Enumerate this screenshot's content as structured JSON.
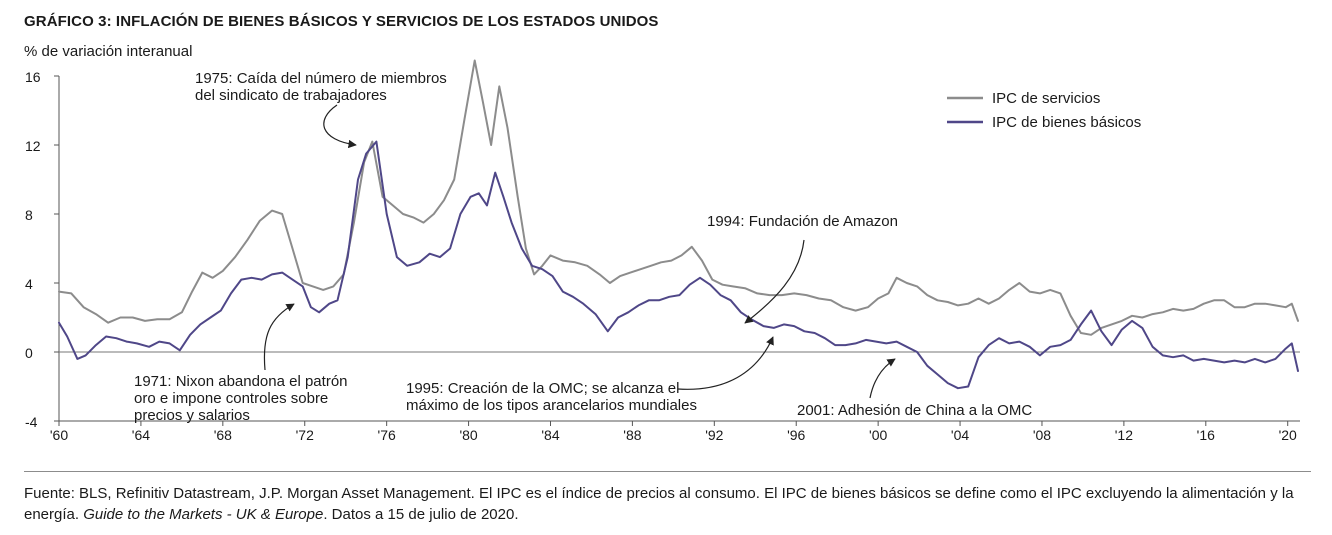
{
  "header": {
    "title": "GRÁFICO 3: INFLACIÓN DE BIENES BÁSICOS Y SERVICIOS DE LOS ESTADOS UNIDOS",
    "ylabel": "% de variación interanual"
  },
  "footer": {
    "source_main": "Fuente: BLS, Refinitiv Datastream, J.P. Morgan Asset Management. El IPC es el índice de precios al consumo. El IPC de bienes básicos se define como el IPC excluyendo la alimentación y la energía.",
    "source_italic": "Guide to the Markets - UK & Europe",
    "source_tail": ". Datos a 15 de julio de 2020."
  },
  "colors": {
    "services": "#8c8c8c",
    "core_goods": "#4f4788",
    "axis": "#555555"
  },
  "chart_data": {
    "type": "line",
    "title": "GRÁFICO 3: INFLACIÓN DE BIENES BÁSICOS Y SERVICIOS DE LOS ESTADOS UNIDOS",
    "ylabel": "% de variación interanual",
    "xlabel": "",
    "xlim": [
      1960,
      2020.6
    ],
    "ylim": [
      -4,
      16
    ],
    "yticks": [
      -4,
      0,
      4,
      8,
      12,
      16
    ],
    "ytick_labels": [
      "-4",
      "0",
      "4",
      "8",
      "12",
      "16"
    ],
    "xticks": [
      1960,
      1964,
      1968,
      1972,
      1976,
      1980,
      1984,
      1988,
      1992,
      1996,
      2000,
      2004,
      2008,
      2012,
      2016,
      2020
    ],
    "xtick_labels": [
      "'60",
      "'64",
      "'68",
      "'72",
      "'76",
      "'80",
      "'84",
      "'88",
      "'92",
      "'96",
      "'00",
      "'04",
      "'08",
      "'12",
      "'16",
      "'20"
    ],
    "legend_position": "top-right",
    "series": [
      {
        "name": "IPC de servicios",
        "color": "#8c8c8c",
        "points": [
          [
            1960.0,
            3.5
          ],
          [
            1960.6,
            3.4
          ],
          [
            1961.2,
            2.6
          ],
          [
            1961.8,
            2.2
          ],
          [
            1962.4,
            1.7
          ],
          [
            1963.0,
            2.0
          ],
          [
            1963.6,
            2.0
          ],
          [
            1964.2,
            1.8
          ],
          [
            1964.8,
            1.9
          ],
          [
            1965.4,
            1.9
          ],
          [
            1966.0,
            2.3
          ],
          [
            1966.5,
            3.5
          ],
          [
            1967.0,
            4.6
          ],
          [
            1967.5,
            4.3
          ],
          [
            1968.0,
            4.7
          ],
          [
            1968.6,
            5.5
          ],
          [
            1969.2,
            6.5
          ],
          [
            1969.8,
            7.6
          ],
          [
            1970.4,
            8.2
          ],
          [
            1970.9,
            8.0
          ],
          [
            1971.4,
            6.0
          ],
          [
            1971.9,
            4.0
          ],
          [
            1972.4,
            3.8
          ],
          [
            1972.9,
            3.6
          ],
          [
            1973.4,
            3.8
          ],
          [
            1973.9,
            4.5
          ],
          [
            1974.4,
            7.5
          ],
          [
            1974.9,
            11.0
          ],
          [
            1975.3,
            12.2
          ],
          [
            1975.8,
            9.0
          ],
          [
            1976.3,
            8.5
          ],
          [
            1976.8,
            8.0
          ],
          [
            1977.3,
            7.8
          ],
          [
            1977.8,
            7.5
          ],
          [
            1978.3,
            8.0
          ],
          [
            1978.8,
            8.8
          ],
          [
            1979.3,
            10.0
          ],
          [
            1979.8,
            13.5
          ],
          [
            1980.3,
            16.9
          ],
          [
            1980.7,
            14.5
          ],
          [
            1981.1,
            12.0
          ],
          [
            1981.5,
            15.4
          ],
          [
            1981.9,
            13.0
          ],
          [
            1982.4,
            9.0
          ],
          [
            1982.8,
            6.0
          ],
          [
            1983.2,
            4.5
          ],
          [
            1983.6,
            5.0
          ],
          [
            1984.0,
            5.6
          ],
          [
            1984.6,
            5.3
          ],
          [
            1985.2,
            5.2
          ],
          [
            1985.8,
            5.0
          ],
          [
            1986.4,
            4.5
          ],
          [
            1986.9,
            4.0
          ],
          [
            1987.4,
            4.4
          ],
          [
            1987.9,
            4.6
          ],
          [
            1988.4,
            4.8
          ],
          [
            1988.9,
            5.0
          ],
          [
            1989.4,
            5.2
          ],
          [
            1989.9,
            5.3
          ],
          [
            1990.4,
            5.6
          ],
          [
            1990.9,
            6.1
          ],
          [
            1991.4,
            5.3
          ],
          [
            1991.9,
            4.2
          ],
          [
            1992.4,
            3.9
          ],
          [
            1992.9,
            3.8
          ],
          [
            1993.5,
            3.7
          ],
          [
            1994.1,
            3.4
          ],
          [
            1994.7,
            3.3
          ],
          [
            1995.3,
            3.3
          ],
          [
            1995.9,
            3.4
          ],
          [
            1996.5,
            3.3
          ],
          [
            1997.1,
            3.1
          ],
          [
            1997.7,
            3.0
          ],
          [
            1998.3,
            2.6
          ],
          [
            1998.9,
            2.4
          ],
          [
            1999.5,
            2.6
          ],
          [
            2000.0,
            3.1
          ],
          [
            2000.5,
            3.4
          ],
          [
            2000.9,
            4.3
          ],
          [
            2001.4,
            4.0
          ],
          [
            2001.9,
            3.8
          ],
          [
            2002.4,
            3.3
          ],
          [
            2002.9,
            3.0
          ],
          [
            2003.4,
            2.9
          ],
          [
            2003.9,
            2.7
          ],
          [
            2004.4,
            2.8
          ],
          [
            2004.9,
            3.1
          ],
          [
            2005.4,
            2.8
          ],
          [
            2005.9,
            3.1
          ],
          [
            2006.4,
            3.6
          ],
          [
            2006.9,
            4.0
          ],
          [
            2007.4,
            3.5
          ],
          [
            2007.9,
            3.4
          ],
          [
            2008.4,
            3.6
          ],
          [
            2008.9,
            3.4
          ],
          [
            2009.4,
            2.1
          ],
          [
            2009.9,
            1.1
          ],
          [
            2010.4,
            1.0
          ],
          [
            2010.9,
            1.4
          ],
          [
            2011.4,
            1.6
          ],
          [
            2011.9,
            1.8
          ],
          [
            2012.4,
            2.1
          ],
          [
            2012.9,
            2.0
          ],
          [
            2013.4,
            2.2
          ],
          [
            2013.9,
            2.3
          ],
          [
            2014.4,
            2.5
          ],
          [
            2014.9,
            2.4
          ],
          [
            2015.4,
            2.5
          ],
          [
            2015.9,
            2.8
          ],
          [
            2016.4,
            3.0
          ],
          [
            2016.9,
            3.0
          ],
          [
            2017.4,
            2.6
          ],
          [
            2017.9,
            2.6
          ],
          [
            2018.4,
            2.8
          ],
          [
            2018.9,
            2.8
          ],
          [
            2019.4,
            2.7
          ],
          [
            2019.9,
            2.6
          ],
          [
            2020.2,
            2.8
          ],
          [
            2020.5,
            1.8
          ]
        ]
      },
      {
        "name": "IPC de bienes básicos",
        "color": "#4f4788",
        "points": [
          [
            1960.0,
            1.7
          ],
          [
            1960.4,
            0.9
          ],
          [
            1960.9,
            -0.4
          ],
          [
            1961.3,
            -0.2
          ],
          [
            1961.8,
            0.4
          ],
          [
            1962.3,
            0.9
          ],
          [
            1962.8,
            0.8
          ],
          [
            1963.3,
            0.6
          ],
          [
            1963.8,
            0.5
          ],
          [
            1964.4,
            0.3
          ],
          [
            1964.9,
            0.6
          ],
          [
            1965.4,
            0.5
          ],
          [
            1965.9,
            0.1
          ],
          [
            1966.4,
            1.0
          ],
          [
            1966.9,
            1.6
          ],
          [
            1967.4,
            2.0
          ],
          [
            1967.9,
            2.4
          ],
          [
            1968.4,
            3.4
          ],
          [
            1968.9,
            4.2
          ],
          [
            1969.4,
            4.3
          ],
          [
            1969.9,
            4.2
          ],
          [
            1970.4,
            4.5
          ],
          [
            1970.9,
            4.6
          ],
          [
            1971.4,
            4.2
          ],
          [
            1971.9,
            3.8
          ],
          [
            1972.3,
            2.6
          ],
          [
            1972.7,
            2.3
          ],
          [
            1973.2,
            2.8
          ],
          [
            1973.6,
            3.0
          ],
          [
            1974.1,
            5.5
          ],
          [
            1974.6,
            10.0
          ],
          [
            1975.0,
            11.5
          ],
          [
            1975.5,
            12.2
          ],
          [
            1976.0,
            8.0
          ],
          [
            1976.5,
            5.5
          ],
          [
            1977.0,
            5.0
          ],
          [
            1977.6,
            5.2
          ],
          [
            1978.1,
            5.7
          ],
          [
            1978.6,
            5.5
          ],
          [
            1979.1,
            6.0
          ],
          [
            1979.6,
            8.0
          ],
          [
            1980.1,
            9.0
          ],
          [
            1980.5,
            9.2
          ],
          [
            1980.9,
            8.5
          ],
          [
            1981.3,
            10.4
          ],
          [
            1981.7,
            9.0
          ],
          [
            1982.1,
            7.5
          ],
          [
            1982.6,
            6.0
          ],
          [
            1983.1,
            5.0
          ],
          [
            1983.6,
            4.8
          ],
          [
            1984.1,
            4.4
          ],
          [
            1984.6,
            3.5
          ],
          [
            1985.1,
            3.2
          ],
          [
            1985.6,
            2.8
          ],
          [
            1986.2,
            2.2
          ],
          [
            1986.8,
            1.2
          ],
          [
            1987.3,
            2.0
          ],
          [
            1987.8,
            2.3
          ],
          [
            1988.3,
            2.7
          ],
          [
            1988.8,
            3.0
          ],
          [
            1989.3,
            3.0
          ],
          [
            1989.8,
            3.2
          ],
          [
            1990.3,
            3.3
          ],
          [
            1990.8,
            3.9
          ],
          [
            1991.3,
            4.3
          ],
          [
            1991.8,
            3.9
          ],
          [
            1992.3,
            3.3
          ],
          [
            1992.8,
            3.0
          ],
          [
            1993.3,
            2.3
          ],
          [
            1993.8,
            1.9
          ],
          [
            1994.4,
            1.5
          ],
          [
            1994.9,
            1.4
          ],
          [
            1995.4,
            1.6
          ],
          [
            1995.9,
            1.5
          ],
          [
            1996.4,
            1.2
          ],
          [
            1996.9,
            1.1
          ],
          [
            1997.4,
            0.8
          ],
          [
            1997.9,
            0.4
          ],
          [
            1998.4,
            0.4
          ],
          [
            1998.9,
            0.5
          ],
          [
            1999.4,
            0.7
          ],
          [
            1999.9,
            0.6
          ],
          [
            2000.4,
            0.5
          ],
          [
            2000.9,
            0.6
          ],
          [
            2001.4,
            0.3
          ],
          [
            2001.9,
            0.0
          ],
          [
            2002.4,
            -0.8
          ],
          [
            2002.9,
            -1.3
          ],
          [
            2003.4,
            -1.8
          ],
          [
            2003.9,
            -2.1
          ],
          [
            2004.4,
            -2.0
          ],
          [
            2004.9,
            -0.3
          ],
          [
            2005.4,
            0.4
          ],
          [
            2005.9,
            0.8
          ],
          [
            2006.4,
            0.5
          ],
          [
            2006.9,
            0.6
          ],
          [
            2007.4,
            0.3
          ],
          [
            2007.9,
            -0.2
          ],
          [
            2008.4,
            0.3
          ],
          [
            2008.9,
            0.4
          ],
          [
            2009.4,
            0.7
          ],
          [
            2009.9,
            1.6
          ],
          [
            2010.4,
            2.4
          ],
          [
            2010.9,
            1.2
          ],
          [
            2011.4,
            0.4
          ],
          [
            2011.9,
            1.3
          ],
          [
            2012.4,
            1.8
          ],
          [
            2012.9,
            1.4
          ],
          [
            2013.4,
            0.3
          ],
          [
            2013.9,
            -0.2
          ],
          [
            2014.4,
            -0.3
          ],
          [
            2014.9,
            -0.2
          ],
          [
            2015.4,
            -0.5
          ],
          [
            2015.9,
            -0.4
          ],
          [
            2016.4,
            -0.5
          ],
          [
            2016.9,
            -0.6
          ],
          [
            2017.4,
            -0.5
          ],
          [
            2017.9,
            -0.6
          ],
          [
            2018.4,
            -0.4
          ],
          [
            2018.9,
            -0.6
          ],
          [
            2019.4,
            -0.4
          ],
          [
            2019.9,
            0.2
          ],
          [
            2020.2,
            0.5
          ],
          [
            2020.5,
            -1.1
          ]
        ]
      }
    ],
    "annotations": [
      {
        "lines": [
          "1975: Caída del número de miembros",
          "del sindicato de trabajadores"
        ],
        "target": [
          1975.3,
          12.0
        ]
      },
      {
        "lines": [
          "1971: Nixon abandona el patrón",
          "oro e impone controles sobre",
          "precios y salarios"
        ],
        "target": [
          1971.8,
          2.8
        ]
      },
      {
        "lines": [
          "1994: Fundación de Amazon"
        ],
        "target": [
          1993.6,
          1.9
        ]
      },
      {
        "lines": [
          "1995: Creación de la OMC; se alcanza el",
          "máximo de los tipos arancelarios mundiales"
        ],
        "target": [
          1995.0,
          0.8
        ]
      },
      {
        "lines": [
          "2001: Adhesión de China a la OMC"
        ],
        "target": [
          2001.6,
          -1.0
        ]
      }
    ]
  }
}
